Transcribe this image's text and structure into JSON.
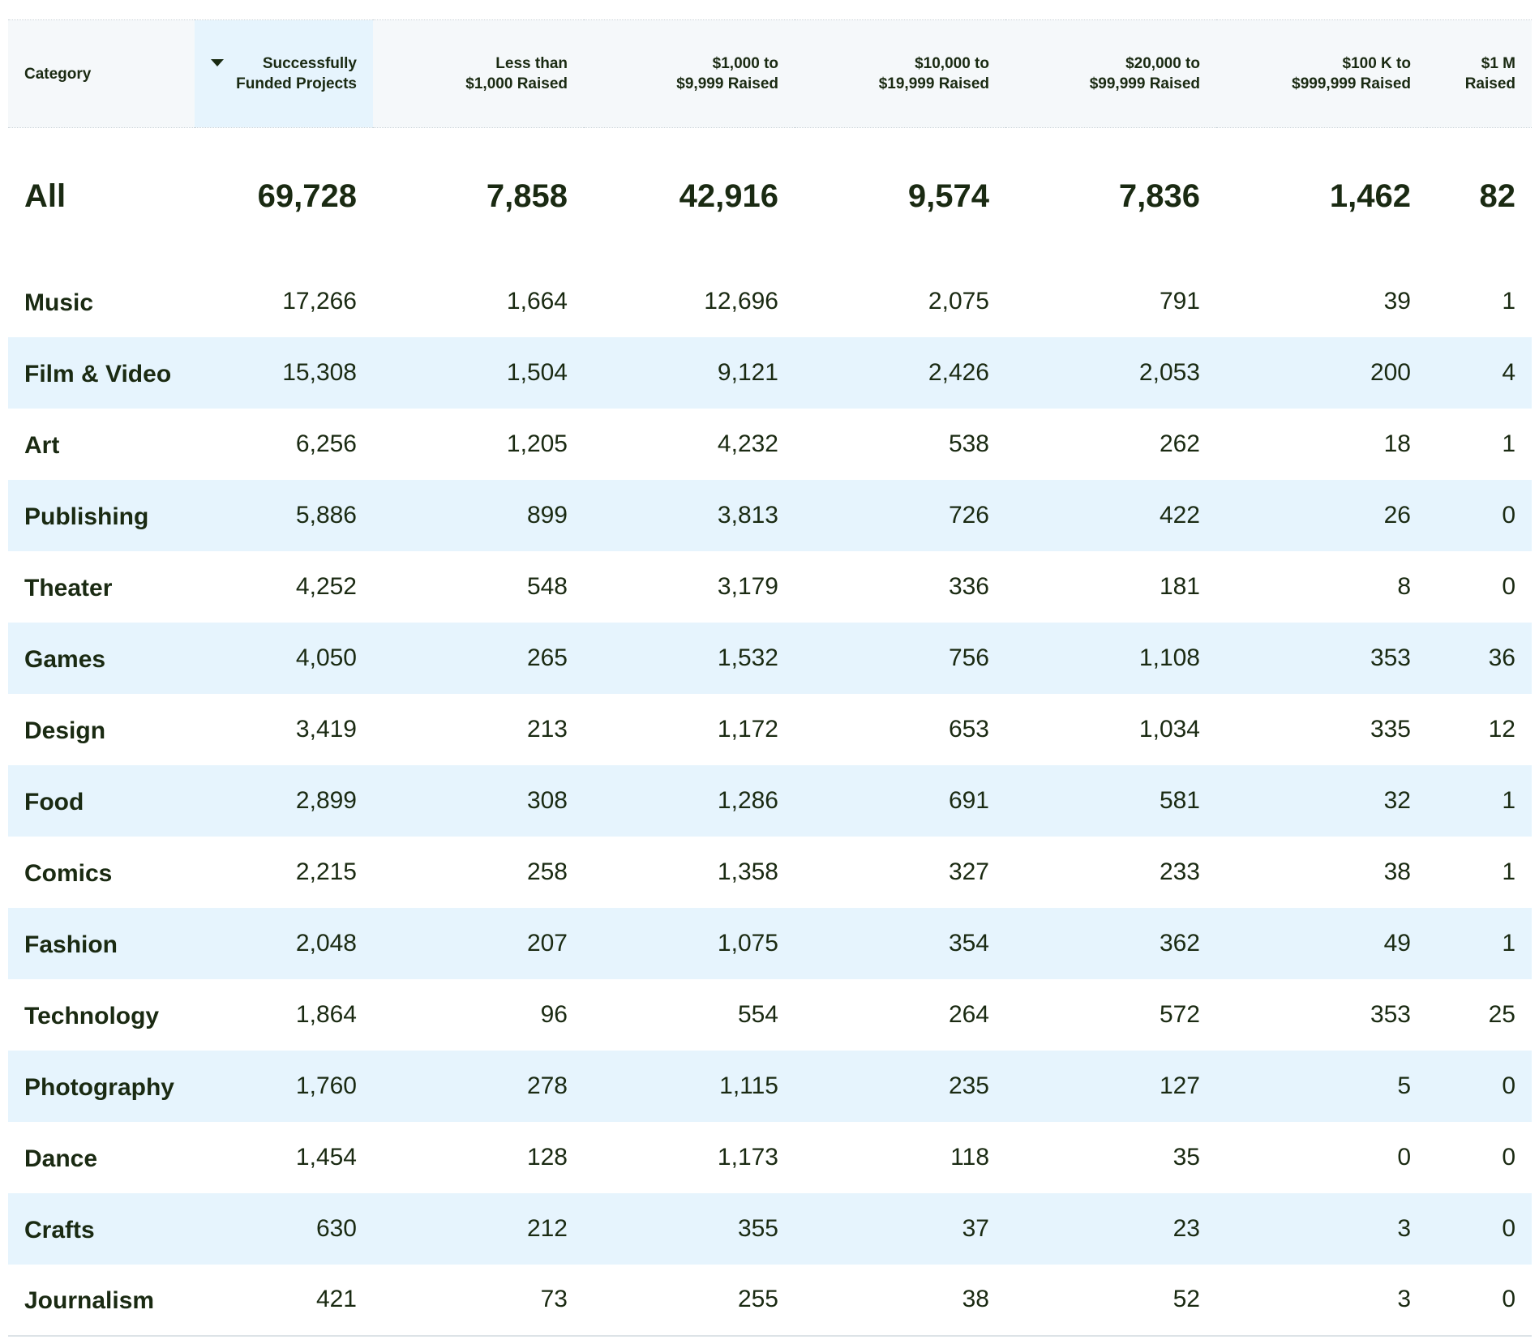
{
  "table": {
    "columns": [
      {
        "line1": "Category",
        "line2": ""
      },
      {
        "line1": "Successfully",
        "line2": "Funded Projects"
      },
      {
        "line1": "Less than",
        "line2": "$1,000 Raised"
      },
      {
        "line1": "$1,000 to",
        "line2": "$9,999 Raised"
      },
      {
        "line1": "$10,000 to",
        "line2": "$19,999 Raised"
      },
      {
        "line1": "$20,000 to",
        "line2": "$99,999 Raised"
      },
      {
        "line1": "$100 K to",
        "line2": "$999,999 Raised"
      },
      {
        "line1": "$1 M",
        "line2": "Raised"
      }
    ],
    "sorted_column_icon": "sort-descending-icon",
    "total": {
      "category": "All",
      "values": [
        "69,728",
        "7,858",
        "42,916",
        "9,574",
        "7,836",
        "1,462",
        "82"
      ]
    },
    "rows": [
      {
        "category": "Music",
        "values": [
          "17,266",
          "1,664",
          "12,696",
          "2,075",
          "791",
          "39",
          "1"
        ]
      },
      {
        "category": "Film & Video",
        "values": [
          "15,308",
          "1,504",
          "9,121",
          "2,426",
          "2,053",
          "200",
          "4"
        ]
      },
      {
        "category": "Art",
        "values": [
          "6,256",
          "1,205",
          "4,232",
          "538",
          "262",
          "18",
          "1"
        ]
      },
      {
        "category": "Publishing",
        "values": [
          "5,886",
          "899",
          "3,813",
          "726",
          "422",
          "26",
          "0"
        ]
      },
      {
        "category": "Theater",
        "values": [
          "4,252",
          "548",
          "3,179",
          "336",
          "181",
          "8",
          "0"
        ]
      },
      {
        "category": "Games",
        "values": [
          "4,050",
          "265",
          "1,532",
          "756",
          "1,108",
          "353",
          "36"
        ]
      },
      {
        "category": "Design",
        "values": [
          "3,419",
          "213",
          "1,172",
          "653",
          "1,034",
          "335",
          "12"
        ]
      },
      {
        "category": "Food",
        "values": [
          "2,899",
          "308",
          "1,286",
          "691",
          "581",
          "32",
          "1"
        ]
      },
      {
        "category": "Comics",
        "values": [
          "2,215",
          "258",
          "1,358",
          "327",
          "233",
          "38",
          "1"
        ]
      },
      {
        "category": "Fashion",
        "values": [
          "2,048",
          "207",
          "1,075",
          "354",
          "362",
          "49",
          "1"
        ]
      },
      {
        "category": "Technology",
        "values": [
          "1,864",
          "96",
          "554",
          "264",
          "572",
          "353",
          "25"
        ]
      },
      {
        "category": "Photography",
        "values": [
          "1,760",
          "278",
          "1,115",
          "235",
          "127",
          "5",
          "0"
        ]
      },
      {
        "category": "Dance",
        "values": [
          "1,454",
          "128",
          "1,173",
          "118",
          "35",
          "0",
          "0"
        ]
      },
      {
        "category": "Crafts",
        "values": [
          "630",
          "212",
          "355",
          "37",
          "23",
          "3",
          "0"
        ]
      },
      {
        "category": "Journalism",
        "values": [
          "421",
          "73",
          "255",
          "38",
          "52",
          "3",
          "0"
        ]
      }
    ]
  },
  "colors": {
    "header_bg": "#f5f8fa",
    "sorted_header_bg": "#e6f4fd",
    "stripe_bg": "#e6f4fd",
    "text": "#1a2a12"
  }
}
